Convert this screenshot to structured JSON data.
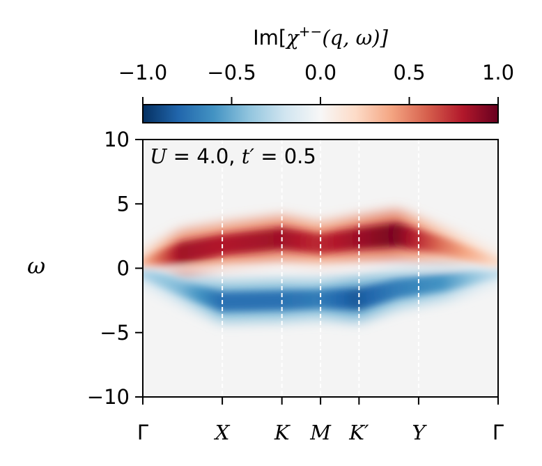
{
  "chart_data": {
    "type": "heatmap",
    "title": "",
    "xlabel": "",
    "ylabel": "ω",
    "annotation": "U = 4.0, t′ = 0.5",
    "annotation_parts": {
      "u_symbol": "U",
      "u_eq": " = 4.0, ",
      "t_symbol": "t′",
      "t_eq": " = 0.5"
    },
    "colorbar": {
      "label": "Im[χ+−(q, ω)]",
      "label_parts": {
        "im": "Im[",
        "chi": "χ",
        "sup": "+−",
        "args": "(q, ω)]"
      },
      "range": [
        -1.0,
        1.0
      ],
      "ticks": [
        "−1.0",
        "−0.5",
        "0.0",
        "0.5",
        "1.0"
      ],
      "tick_values": [
        -1.0,
        -0.5,
        0.0,
        0.5,
        1.0
      ],
      "colormap": "RdBu_r",
      "location": "top"
    },
    "ylim": [
      -10,
      10
    ],
    "y_ticks": [
      "10",
      "5",
      "0",
      "−5",
      "−10"
    ],
    "y_tick_values": [
      10,
      5,
      0,
      -5,
      -10
    ],
    "x_ticks": [
      {
        "label": "Γ",
        "pos": 0.0
      },
      {
        "label": "X",
        "pos": 1.0
      },
      {
        "label": "K",
        "pos": 1.75
      },
      {
        "label": "M",
        "pos": 2.236
      },
      {
        "label": "K′",
        "pos": 2.72
      },
      {
        "label": "Y",
        "pos": 3.47
      },
      {
        "label": "Γ",
        "pos": 4.47
      }
    ],
    "x_range": [
      0,
      4.47
    ],
    "vlines_at": [
      "X",
      "K",
      "M",
      "K′",
      "Y"
    ],
    "positive_band": [
      {
        "x": 0.0,
        "omega": 0.3,
        "intensity": 0.3
      },
      {
        "x": 0.5,
        "omega": 1.2,
        "intensity": 0.85
      },
      {
        "x": 1.0,
        "omega": 1.8,
        "intensity": 0.8
      },
      {
        "x": 1.75,
        "omega": 2.3,
        "intensity": 0.85
      },
      {
        "x": 2.236,
        "omega": 1.9,
        "intensity": 0.75
      },
      {
        "x": 2.72,
        "omega": 2.3,
        "intensity": 0.85
      },
      {
        "x": 3.2,
        "omega": 2.6,
        "intensity": 0.95
      },
      {
        "x": 3.8,
        "omega": 1.7,
        "intensity": 0.55
      },
      {
        "x": 4.47,
        "omega": 0.4,
        "intensity": 0.2
      }
    ],
    "negative_band": [
      {
        "x": 0.0,
        "omega": -0.3,
        "intensity": -0.3
      },
      {
        "x": 0.5,
        "omega": -1.6,
        "intensity": -0.45
      },
      {
        "x": 1.0,
        "omega": -2.6,
        "intensity": -0.75
      },
      {
        "x": 1.75,
        "omega": -2.5,
        "intensity": -0.75
      },
      {
        "x": 2.236,
        "omega": -2.4,
        "intensity": -0.7
      },
      {
        "x": 2.72,
        "omega": -2.4,
        "intensity": -0.85
      },
      {
        "x": 3.2,
        "omega": -1.6,
        "intensity": -0.7
      },
      {
        "x": 3.8,
        "omega": -1.1,
        "intensity": -0.6
      },
      {
        "x": 4.47,
        "omega": -0.3,
        "intensity": -0.25
      }
    ],
    "grid": false
  }
}
